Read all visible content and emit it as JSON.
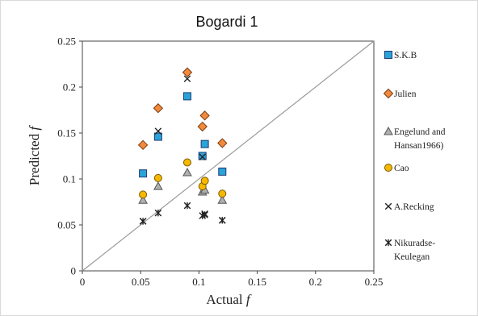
{
  "chart_data": {
    "type": "scatter",
    "title": "Bogardi 1",
    "xlabel": "Actual",
    "xlabel_symbol": "f",
    "ylabel": "Predicted",
    "ylabel_symbol": "f",
    "xlim": [
      0,
      0.25
    ],
    "ylim": [
      0,
      0.25
    ],
    "x_ticks": [
      "0",
      "0.05",
      "0.1",
      "0.15",
      "0.2",
      "0.25"
    ],
    "y_ticks": [
      "0",
      "0.05",
      "0.1",
      "0.15",
      "0.2",
      "0.25"
    ],
    "grid": false,
    "legend_position": "right",
    "reference_line": "y = x",
    "series": [
      {
        "name": "S.K.B",
        "marker": "square",
        "color": "#2aa3d9",
        "stroke": "#1f3b73",
        "points": [
          [
            0.052,
            0.106
          ],
          [
            0.065,
            0.146
          ],
          [
            0.09,
            0.19
          ],
          [
            0.103,
            0.125
          ],
          [
            0.105,
            0.138
          ],
          [
            0.12,
            0.108
          ]
        ]
      },
      {
        "name": "Julien",
        "marker": "diamond",
        "color": "#f28a3b",
        "stroke": "#7a3b12",
        "points": [
          [
            0.052,
            0.137
          ],
          [
            0.065,
            0.177
          ],
          [
            0.09,
            0.216
          ],
          [
            0.103,
            0.157
          ],
          [
            0.105,
            0.169
          ],
          [
            0.12,
            0.139
          ]
        ]
      },
      {
        "name": "Engelund and Hansan1966)",
        "name_lines": [
          "Engelund and",
          "Hansan1966)"
        ],
        "marker": "triangle",
        "color": "#b0b0b0",
        "stroke": "#555555",
        "points": [
          [
            0.052,
            0.077
          ],
          [
            0.065,
            0.092
          ],
          [
            0.09,
            0.107
          ],
          [
            0.103,
            0.086
          ],
          [
            0.105,
            0.088
          ],
          [
            0.12,
            0.077
          ]
        ]
      },
      {
        "name": "Cao",
        "marker": "circle",
        "color": "#f5b800",
        "stroke": "#7a5a00",
        "points": [
          [
            0.052,
            0.083
          ],
          [
            0.065,
            0.101
          ],
          [
            0.09,
            0.118
          ],
          [
            0.103,
            0.092
          ],
          [
            0.105,
            0.098
          ],
          [
            0.12,
            0.084
          ]
        ]
      },
      {
        "name": "A.Recking",
        "marker": "x",
        "color": "#222222",
        "stroke": "#222222",
        "points": [
          [
            0.052,
            0.054
          ],
          [
            0.065,
            0.152
          ],
          [
            0.09,
            0.209
          ],
          [
            0.103,
            0.124
          ],
          [
            0.105,
            0.062
          ],
          [
            0.12,
            0.055
          ]
        ]
      },
      {
        "name": "Nikuradse-Keulegan",
        "name_lines": [
          "Nikuradse-",
          "Keulegan"
        ],
        "marker": "star",
        "color": "#222222",
        "stroke": "#222222",
        "points": [
          [
            0.052,
            0.054
          ],
          [
            0.065,
            0.063
          ],
          [
            0.09,
            0.071
          ],
          [
            0.103,
            0.06
          ],
          [
            0.105,
            0.061
          ],
          [
            0.12,
            0.055
          ]
        ]
      }
    ]
  }
}
